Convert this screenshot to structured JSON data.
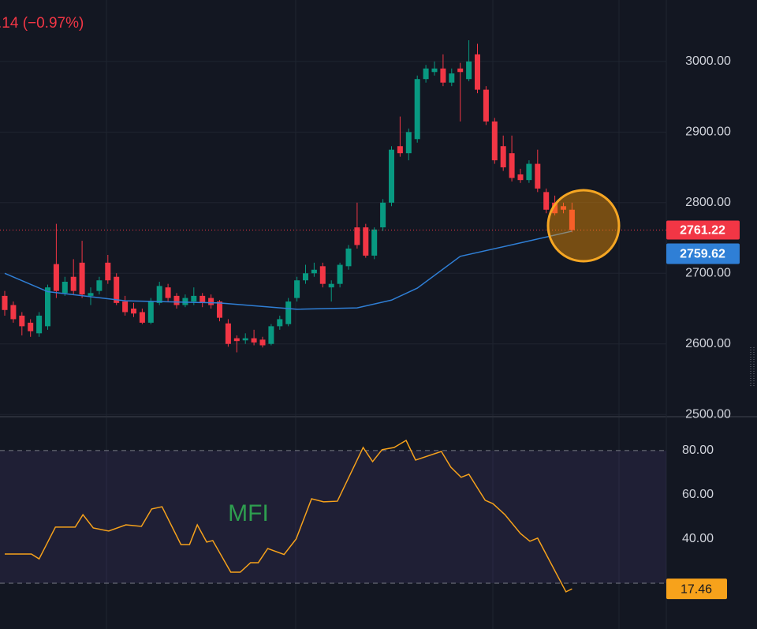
{
  "chart_data": [
    {
      "type": "candlestick",
      "title": ".14 (−0.97%)",
      "open": [
        2668,
        2655,
        2640,
        2630,
        2615,
        2625,
        2713,
        2672,
        2695,
        2715,
        2668,
        2675,
        2715,
        2695,
        2660,
        2650,
        2645,
        2630,
        2658,
        2680,
        2668,
        2655,
        2660,
        2668,
        2665,
        2660,
        2629,
        2608,
        2605,
        2608,
        2606,
        2600,
        2625,
        2628,
        2665,
        2690,
        2700,
        2710,
        2680,
        2685,
        2710,
        2765,
        2765,
        2725,
        2765,
        2800,
        2880,
        2870,
        2890,
        2975,
        2985,
        2990,
        2970,
        2990,
        2975,
        3010,
        2960,
        2915,
        2880,
        2870,
        2840,
        2832,
        2855,
        2815,
        2800,
        2795,
        2790
      ],
      "high": [
        2675,
        2660,
        2645,
        2635,
        2645,
        2684,
        2770,
        2695,
        2720,
        2746,
        2680,
        2695,
        2726,
        2700,
        2668,
        2658,
        2650,
        2665,
        2688,
        2685,
        2672,
        2670,
        2680,
        2672,
        2670,
        2662,
        2635,
        2612,
        2615,
        2620,
        2610,
        2628,
        2640,
        2665,
        2695,
        2712,
        2715,
        2715,
        2690,
        2715,
        2740,
        2800,
        2770,
        2765,
        2805,
        2880,
        2922,
        2905,
        2980,
        2995,
        3000,
        3010,
        2990,
        2998,
        3030,
        3025,
        2965,
        2920,
        2895,
        2895,
        2848,
        2860,
        2875,
        2820,
        2810,
        2800,
        2800
      ],
      "low": [
        2640,
        2630,
        2612,
        2610,
        2610,
        2620,
        2665,
        2668,
        2670,
        2665,
        2655,
        2670,
        2685,
        2655,
        2640,
        2638,
        2628,
        2628,
        2655,
        2660,
        2650,
        2652,
        2655,
        2652,
        2650,
        2632,
        2596,
        2588,
        2600,
        2598,
        2595,
        2598,
        2620,
        2625,
        2660,
        2685,
        2695,
        2680,
        2660,
        2680,
        2705,
        2735,
        2722,
        2720,
        2760,
        2795,
        2865,
        2860,
        2885,
        2970,
        2980,
        2965,
        2965,
        2915,
        2972,
        2955,
        2910,
        2855,
        2845,
        2830,
        2828,
        2828,
        2815,
        2785,
        2782,
        2785,
        2758
      ],
      "close": [
        2648,
        2635,
        2625,
        2618,
        2640,
        2680,
        2675,
        2688,
        2675,
        2670,
        2672,
        2690,
        2690,
        2658,
        2645,
        2643,
        2630,
        2660,
        2682,
        2665,
        2655,
        2665,
        2668,
        2658,
        2655,
        2637,
        2600,
        2604,
        2608,
        2602,
        2598,
        2625,
        2635,
        2660,
        2690,
        2700,
        2705,
        2685,
        2685,
        2712,
        2735,
        2740,
        2725,
        2762,
        2800,
        2875,
        2870,
        2900,
        2975,
        2990,
        2990,
        2970,
        2983,
        2985,
        3000,
        2960,
        2915,
        2860,
        2850,
        2835,
        2832,
        2855,
        2820,
        2790,
        2785,
        2790,
        2761.22
      ],
      "up_color": "#089981",
      "down_color": "#f23645",
      "ma": {
        "color": "#2f7fd6",
        "x": [
          0,
          5,
          14,
          25,
          34,
          41,
          45,
          48,
          53,
          60,
          66
        ],
        "values": [
          2700,
          2674,
          2661,
          2658,
          2649,
          2651,
          2662,
          2679,
          2724,
          2743,
          2759.62
        ]
      },
      "ylim": [
        2498,
        3087
      ],
      "yticks": [
        {
          "value": 2500,
          "label": "2500.00"
        },
        {
          "value": 2600,
          "label": "2600.00"
        },
        {
          "value": 2700,
          "label": "2700.00"
        },
        {
          "value": 2800,
          "label": "2800.00"
        },
        {
          "value": 2900,
          "label": "2900.00"
        },
        {
          "value": 3000,
          "label": "3000.00"
        }
      ],
      "grid": true
    },
    {
      "type": "line",
      "annotation": "MFI",
      "color": "#f7a21b",
      "x": [
        0,
        3.1,
        4,
        5.9,
        8.2,
        9.1,
        10.3,
        12.1,
        14.1,
        15.9,
        17.1,
        18.3,
        20.5,
        21.5,
        22.4,
        23.5,
        24.2,
        26.3,
        27.4,
        28.6,
        29.5,
        30.6,
        32.5,
        33.9,
        35.7,
        37.1,
        38.7,
        41.7,
        42.8,
        43.9,
        45.3,
        46.7,
        47.8,
        50.8,
        51.9,
        53.1,
        54.0,
        55.9,
        56.8,
        58.2,
        60.0,
        61.1,
        62.0,
        65.3,
        66
      ],
      "values": [
        33.2,
        33.2,
        31,
        45.4,
        45.4,
        51,
        45,
        43.6,
        46.4,
        45.7,
        53.6,
        54.6,
        37.5,
        37.5,
        46.4,
        38.6,
        39.3,
        25,
        25,
        29.3,
        29.3,
        35.7,
        33,
        40,
        58.2,
        56.8,
        57.1,
        81.4,
        75,
        80.4,
        81.4,
        84.6,
        75.7,
        79.6,
        72.5,
        67.9,
        69.3,
        57.5,
        56,
        51,
        42.5,
        39,
        40.4,
        16.1,
        17.46
      ],
      "bands": [
        20,
        80
      ],
      "ylim": [
        -0.7,
        94.6
      ],
      "yticks": [
        {
          "value": 40,
          "label": "40.00"
        },
        {
          "value": 60,
          "label": "60.00"
        },
        {
          "value": 80,
          "label": "80.00"
        }
      ]
    }
  ]
}
